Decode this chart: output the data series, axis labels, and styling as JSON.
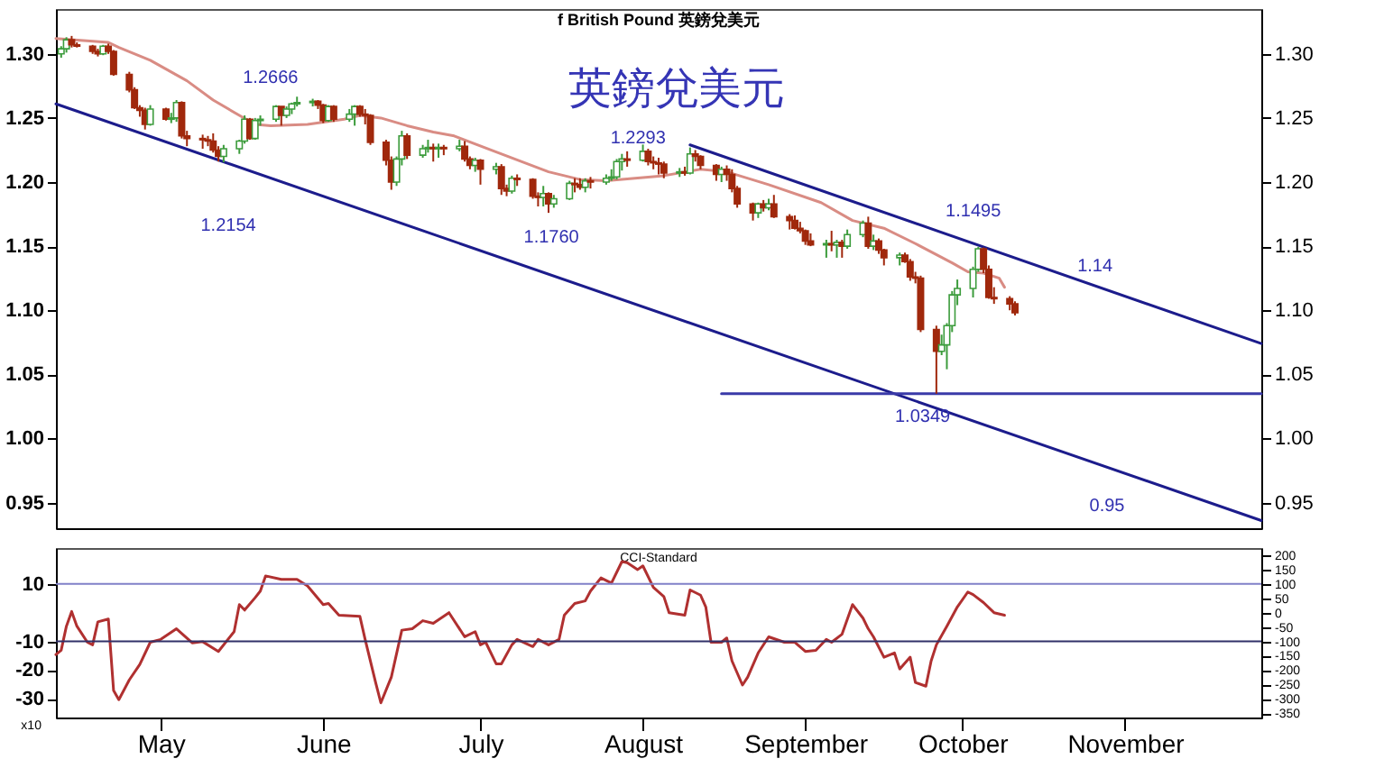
{
  "chart_data": [
    {
      "type": "candlestick",
      "title": "f British Pound 英鎊兌美元",
      "subtitle": "英鎊兌美元",
      "x": [
        "--04-12",
        "--04-13",
        "--04-14",
        "--04-15",
        "--04-18",
        "--04-19",
        "--04-20",
        "--04-21",
        "--04-22",
        "--04-25",
        "--04-26",
        "--04-27",
        "--04-28",
        "--04-29",
        "--05-02",
        "--05-03",
        "--05-04",
        "--05-05",
        "--05-06",
        "--05-09",
        "--05-10",
        "--05-11",
        "--05-12",
        "--05-13",
        "--05-16",
        "--05-17",
        "--05-18",
        "--05-19",
        "--05-20",
        "--05-23",
        "--05-24",
        "--05-25",
        "--05-26",
        "--05-27",
        "--05-30",
        "--05-31",
        "--06-01",
        "--06-02",
        "--06-03",
        "--06-06",
        "--06-07",
        "--06-08",
        "--06-09",
        "--06-10",
        "--06-13",
        "--06-14",
        "--06-15",
        "--06-16",
        "--06-17",
        "--06-20",
        "--06-21",
        "--06-22",
        "--06-23",
        "--06-24",
        "--06-27",
        "--06-28",
        "--06-29",
        "--06-30",
        "--07-01",
        "--07-04",
        "--07-05",
        "--07-06",
        "--07-07",
        "--07-08",
        "--07-11",
        "--07-12",
        "--07-13",
        "--07-14",
        "--07-15",
        "--07-18",
        "--07-19",
        "--07-20",
        "--07-21",
        "--07-22",
        "--07-25",
        "--07-26",
        "--07-27",
        "--07-28",
        "--07-29",
        "--08-01",
        "--08-02",
        "--08-03",
        "--08-04",
        "--08-05",
        "--08-08",
        "--08-09",
        "--08-10",
        "--08-11",
        "--08-12",
        "--08-15",
        "--08-16",
        "--08-17",
        "--08-18",
        "--08-19",
        "--08-22",
        "--08-23",
        "--08-24",
        "--08-25",
        "--08-26",
        "--08-29",
        "--08-30",
        "--08-31",
        "--09-01",
        "--09-02",
        "--09-05",
        "--09-06",
        "--09-07",
        "--09-08",
        "--09-09",
        "--09-12",
        "--09-13",
        "--09-14",
        "--09-15",
        "--09-16",
        "--09-19",
        "--09-20",
        "--09-21",
        "--09-22",
        "--09-23",
        "--09-26",
        "--09-27",
        "--09-28",
        "--09-29",
        "--09-30",
        "--10-03",
        "--10-04",
        "--10-05",
        "--10-06",
        "--10-07",
        "--10-10",
        "--10-11"
      ],
      "ohlc": [
        [
          1.3,
          1.306,
          1.297,
          1.304
        ],
        [
          1.304,
          1.313,
          1.301,
          1.311
        ],
        [
          1.311,
          1.314,
          1.305,
          1.307
        ],
        [
          1.307,
          1.309,
          1.305,
          1.306
        ],
        [
          1.306,
          1.307,
          1.3,
          1.302
        ],
        [
          1.302,
          1.304,
          1.298,
          1.3
        ],
        [
          1.3,
          1.307,
          1.299,
          1.306
        ],
        [
          1.306,
          1.308,
          1.3,
          1.302
        ],
        [
          1.302,
          1.303,
          1.283,
          1.284
        ],
        [
          1.284,
          1.286,
          1.27,
          1.272
        ],
        [
          1.272,
          1.274,
          1.257,
          1.258
        ],
        [
          1.258,
          1.26,
          1.251,
          1.256
        ],
        [
          1.256,
          1.258,
          1.241,
          1.245
        ],
        [
          1.245,
          1.26,
          1.244,
          1.257
        ],
        [
          1.257,
          1.258,
          1.248,
          1.249
        ],
        [
          1.249,
          1.254,
          1.246,
          1.25
        ],
        [
          1.25,
          1.264,
          1.247,
          1.262
        ],
        [
          1.262,
          1.263,
          1.234,
          1.236
        ],
        [
          1.236,
          1.24,
          1.228,
          1.234
        ],
        [
          1.234,
          1.237,
          1.226,
          1.233
        ],
        [
          1.233,
          1.236,
          1.228,
          1.232
        ],
        [
          1.232,
          1.238,
          1.223,
          1.225
        ],
        [
          1.225,
          1.228,
          1.216,
          1.22
        ],
        [
          1.22,
          1.229,
          1.2154,
          1.226
        ],
        [
          1.226,
          1.233,
          1.222,
          1.232
        ],
        [
          1.232,
          1.252,
          1.23,
          1.249
        ],
        [
          1.249,
          1.25,
          1.233,
          1.234
        ],
        [
          1.234,
          1.25,
          1.233,
          1.248
        ],
        [
          1.248,
          1.252,
          1.244,
          1.249
        ],
        [
          1.249,
          1.26,
          1.247,
          1.259
        ],
        [
          1.259,
          1.259,
          1.244,
          1.252
        ],
        [
          1.252,
          1.259,
          1.25,
          1.257
        ],
        [
          1.257,
          1.262,
          1.253,
          1.261
        ],
        [
          1.261,
          1.2666,
          1.259,
          1.262
        ],
        [
          1.262,
          1.265,
          1.259,
          1.263
        ],
        [
          1.263,
          1.264,
          1.257,
          1.26
        ],
        [
          1.26,
          1.261,
          1.246,
          1.248
        ],
        [
          1.248,
          1.26,
          1.247,
          1.259
        ],
        [
          1.259,
          1.26,
          1.247,
          1.249
        ],
        [
          1.249,
          1.257,
          1.247,
          1.253
        ],
        [
          1.253,
          1.26,
          1.244,
          1.259
        ],
        [
          1.259,
          1.26,
          1.251,
          1.253
        ],
        [
          1.253,
          1.257,
          1.245,
          1.252
        ],
        [
          1.252,
          1.253,
          1.229,
          1.231
        ],
        [
          1.231,
          1.233,
          1.213,
          1.217
        ],
        [
          1.217,
          1.22,
          1.194,
          1.2
        ],
        [
          1.2,
          1.22,
          1.197,
          1.218
        ],
        [
          1.218,
          1.24,
          1.213,
          1.236
        ],
        [
          1.236,
          1.238,
          1.218,
          1.221
        ],
        [
          1.221,
          1.229,
          1.219,
          1.226
        ],
        [
          1.226,
          1.233,
          1.223,
          1.227
        ],
        [
          1.227,
          1.23,
          1.216,
          1.226
        ],
        [
          1.226,
          1.23,
          1.219,
          1.227
        ],
        [
          1.227,
          1.229,
          1.221,
          1.226
        ],
        [
          1.226,
          1.233,
          1.224,
          1.228
        ],
        [
          1.228,
          1.232,
          1.216,
          1.218
        ],
        [
          1.218,
          1.22,
          1.21,
          1.213
        ],
        [
          1.213,
          1.219,
          1.208,
          1.217
        ],
        [
          1.217,
          1.218,
          1.198,
          1.21
        ],
        [
          1.21,
          1.215,
          1.206,
          1.212
        ],
        [
          1.212,
          1.214,
          1.19,
          1.195
        ],
        [
          1.195,
          1.198,
          1.189,
          1.193
        ],
        [
          1.193,
          1.205,
          1.191,
          1.203
        ],
        [
          1.203,
          1.206,
          1.197,
          1.202
        ],
        [
          1.202,
          1.203,
          1.187,
          1.189
        ],
        [
          1.189,
          1.192,
          1.181,
          1.188
        ],
        [
          1.188,
          1.197,
          1.181,
          1.191
        ],
        [
          1.191,
          1.192,
          1.176,
          1.183
        ],
        [
          1.183,
          1.19,
          1.18,
          1.187
        ],
        [
          1.187,
          1.201,
          1.186,
          1.199
        ],
        [
          1.199,
          1.203,
          1.192,
          1.198
        ],
        [
          1.198,
          1.203,
          1.194,
          1.196
        ],
        [
          1.196,
          1.203,
          1.192,
          1.201
        ],
        [
          1.201,
          1.204,
          1.195,
          1.2
        ],
        [
          1.2,
          1.206,
          1.198,
          1.203
        ],
        [
          1.203,
          1.21,
          1.201,
          1.204
        ],
        [
          1.204,
          1.218,
          1.202,
          1.216
        ],
        [
          1.216,
          1.222,
          1.209,
          1.218
        ],
        [
          1.218,
          1.224,
          1.212,
          1.217
        ],
        [
          1.217,
          1.2293,
          1.216,
          1.224
        ],
        [
          1.224,
          1.226,
          1.213,
          1.216
        ],
        [
          1.216,
          1.22,
          1.21,
          1.215
        ],
        [
          1.215,
          1.219,
          1.206,
          1.214
        ],
        [
          1.214,
          1.216,
          1.203,
          1.207
        ],
        [
          1.207,
          1.211,
          1.204,
          1.208
        ],
        [
          1.208,
          1.212,
          1.205,
          1.207
        ],
        [
          1.207,
          1.227,
          1.206,
          1.222
        ],
        [
          1.222,
          1.225,
          1.216,
          1.22
        ],
        [
          1.22,
          1.221,
          1.21,
          1.213
        ],
        [
          1.213,
          1.214,
          1.201,
          1.206
        ],
        [
          1.206,
          1.212,
          1.2,
          1.21
        ],
        [
          1.21,
          1.213,
          1.201,
          1.206
        ],
        [
          1.206,
          1.21,
          1.192,
          1.195
        ],
        [
          1.195,
          1.197,
          1.18,
          1.183
        ],
        [
          1.183,
          1.184,
          1.17,
          1.176
        ],
        [
          1.176,
          1.184,
          1.172,
          1.183
        ],
        [
          1.183,
          1.186,
          1.177,
          1.18
        ],
        [
          1.18,
          1.187,
          1.178,
          1.183
        ],
        [
          1.183,
          1.19,
          1.172,
          1.173
        ],
        [
          1.173,
          1.175,
          1.163,
          1.17
        ],
        [
          1.17,
          1.174,
          1.163,
          1.164
        ],
        [
          1.164,
          1.169,
          1.16,
          1.162
        ],
        [
          1.162,
          1.163,
          1.151,
          1.154
        ],
        [
          1.154,
          1.16,
          1.15,
          1.151
        ],
        [
          1.151,
          1.155,
          1.141,
          1.152
        ],
        [
          1.152,
          1.162,
          1.146,
          1.151
        ],
        [
          1.151,
          1.155,
          1.141,
          1.153
        ],
        [
          1.153,
          1.155,
          1.141,
          1.15
        ],
        [
          1.15,
          1.163,
          1.148,
          1.159
        ],
        [
          1.159,
          1.17,
          1.157,
          1.168
        ],
        [
          1.168,
          1.173,
          1.148,
          1.15
        ],
        [
          1.15,
          1.159,
          1.147,
          1.154
        ],
        [
          1.154,
          1.156,
          1.144,
          1.147
        ],
        [
          1.147,
          1.148,
          1.135,
          1.141
        ],
        [
          1.141,
          1.145,
          1.135,
          1.143
        ],
        [
          1.143,
          1.145,
          1.137,
          1.138
        ],
        [
          1.138,
          1.14,
          1.123,
          1.126
        ],
        [
          1.126,
          1.13,
          1.121,
          1.125
        ],
        [
          1.125,
          1.127,
          1.083,
          1.085
        ],
        [
          1.085,
          1.088,
          1.0349,
          1.068
        ],
        [
          1.068,
          1.081,
          1.065,
          1.073
        ],
        [
          1.073,
          1.09,
          1.054,
          1.088
        ],
        [
          1.088,
          1.115,
          1.083,
          1.112
        ],
        [
          1.112,
          1.124,
          1.104,
          1.117
        ],
        [
          1.117,
          1.134,
          1.11,
          1.132
        ],
        [
          1.132,
          1.1495,
          1.13,
          1.148
        ],
        [
          1.148,
          1.149,
          1.129,
          1.132
        ],
        [
          1.132,
          1.135,
          1.109,
          1.11
        ],
        [
          1.11,
          1.118,
          1.105,
          1.109
        ],
        [
          1.109,
          1.111,
          1.1,
          1.105
        ],
        [
          1.105,
          1.107,
          1.096,
          1.098
        ]
      ],
      "colors": [
        "#3c9c3c",
        "#3c9c3c",
        "#a0280c",
        "#a0280c",
        "#a0280c",
        "#a0280c",
        "#3c9c3c",
        "#a0280c",
        "#a0280c",
        "#a0280c",
        "#a0280c",
        "#a0280c",
        "#a0280c",
        "#3c9c3c",
        "#a0280c",
        "#3c9c3c",
        "#3c9c3c",
        "#a0280c",
        "#a0280c",
        "#a0280c",
        "#a0280c",
        "#a0280c",
        "#a0280c",
        "#3c9c3c",
        "#3c9c3c",
        "#3c9c3c",
        "#a0280c",
        "#3c9c3c",
        "#3c9c3c",
        "#3c9c3c",
        "#a0280c",
        "#3c9c3c",
        "#3c9c3c",
        "#3c9c3c",
        "#3c9c3c",
        "#a0280c",
        "#a0280c",
        "#3c9c3c",
        "#a0280c",
        "#3c9c3c",
        "#3c9c3c",
        "#a0280c",
        "#a0280c",
        "#a0280c",
        "#a0280c",
        "#a0280c",
        "#3c9c3c",
        "#3c9c3c",
        "#a0280c",
        "#3c9c3c",
        "#3c9c3c",
        "#a0280c",
        "#3c9c3c",
        "#a0280c",
        "#3c9c3c",
        "#a0280c",
        "#a0280c",
        "#3c9c3c",
        "#a0280c",
        "#3c9c3c",
        "#a0280c",
        "#a0280c",
        "#3c9c3c",
        "#a0280c",
        "#a0280c",
        "#a0280c",
        "#3c9c3c",
        "#a0280c",
        "#3c9c3c",
        "#3c9c3c",
        "#a0280c",
        "#a0280c",
        "#3c9c3c",
        "#a0280c",
        "#3c9c3c",
        "#3c9c3c",
        "#3c9c3c",
        "#3c9c3c",
        "#a0280c",
        "#3c9c3c",
        "#a0280c",
        "#a0280c",
        "#a0280c",
        "#a0280c",
        "#3c9c3c",
        "#a0280c",
        "#3c9c3c",
        "#a0280c",
        "#a0280c",
        "#a0280c",
        "#3c9c3c",
        "#a0280c",
        "#a0280c",
        "#a0280c",
        "#a0280c",
        "#3c9c3c",
        "#a0280c",
        "#3c9c3c",
        "#a0280c",
        "#a0280c",
        "#a0280c",
        "#a0280c",
        "#a0280c",
        "#a0280c",
        "#3c9c3c",
        "#a0280c",
        "#3c9c3c",
        "#a0280c",
        "#3c9c3c",
        "#3c9c3c",
        "#a0280c",
        "#3c9c3c",
        "#a0280c",
        "#a0280c",
        "#3c9c3c",
        "#a0280c",
        "#a0280c",
        "#a0280c",
        "#a0280c",
        "#a0280c",
        "#3c9c3c",
        "#3c9c3c",
        "#3c9c3c",
        "#3c9c3c",
        "#3c9c3c",
        "#3c9c3c",
        "#a0280c",
        "#a0280c",
        "#a0280c",
        "#a0280c",
        "#a0280c"
      ],
      "series": [
        {
          "type": "line",
          "color": "#d98c84",
          "x": [
            "--04-11",
            "--04-21",
            "--04-23",
            "--04-29",
            "--05-06",
            "--05-11",
            "--05-16",
            "--05-19",
            "--05-22",
            "--05-29",
            "--06-05",
            "--06-08",
            "--06-12",
            "--06-17",
            "--06-22",
            "--06-26",
            "--07-03",
            "--07-14",
            "--07-20",
            "--07-25",
            "--08-05",
            "--08-12",
            "--08-17",
            "--08-25",
            "--09-04",
            "--09-10",
            "--09-16",
            "--09-22",
            "--09-29",
            "--10-02",
            "--10-05",
            "--10-08",
            "--10-09"
          ],
          "values": [
            1.312,
            1.309,
            1.305,
            1.295,
            1.279,
            1.264,
            1.252,
            1.245,
            1.244,
            1.245,
            1.249,
            1.252,
            1.25,
            1.244,
            1.239,
            1.236,
            1.225,
            1.208,
            1.202,
            1.201,
            1.205,
            1.21,
            1.208,
            1.198,
            1.184,
            1.17,
            1.164,
            1.152,
            1.137,
            1.13,
            1.129,
            1.125,
            1.118
          ]
        },
        {
          "type": "line",
          "color": "#1c1c8c",
          "x": [
            "--04-11",
            "--11-27"
          ],
          "values": [
            1.261,
            0.936
          ]
        },
        {
          "type": "line",
          "color": "#1c1c8c",
          "x": [
            "--08-10",
            "--11-27"
          ],
          "values": [
            1.229,
            1.074
          ]
        },
        {
          "type": "line",
          "color": "#3a3aa8",
          "x": [
            "--08-16",
            "--11-27"
          ],
          "values": [
            1.035,
            1.035
          ]
        }
      ],
      "xlim": [
        "--04-11",
        "--11-27"
      ],
      "ylim": [
        0.93,
        1.335
      ],
      "yticks": [
        0.95,
        {
          "value": 1.0,
          "label": "1.00"
        },
        1.05,
        {
          "value": 1.1,
          "label": "1.10"
        },
        1.15,
        {
          "value": 1.2,
          "label": "1.20"
        },
        1.25,
        {
          "value": 1.3,
          "label": "1.30"
        }
      ],
      "y2lim": [
        0.93,
        1.335
      ],
      "y2ticks": [
        0.95,
        {
          "value": 1.0,
          "label": "1.00"
        },
        1.05,
        {
          "value": 1.1,
          "label": "1.10"
        },
        1.15,
        {
          "value": 1.2,
          "label": "1.20"
        },
        1.25,
        {
          "value": 1.3,
          "label": "1.30"
        }
      ],
      "tick_labels": "y",
      "annotations": [
        "1.2666",
        "1.2154",
        "1.1760",
        "1.2293",
        "1.1495",
        "1.14",
        "1.0349",
        "0.95"
      ]
    },
    {
      "type": "line",
      "annotations": [
        "CCI-Standard",
        "x10"
      ],
      "x": [
        "--04-11",
        "--04-12",
        "--04-13",
        "--04-14",
        "--04-15",
        "--04-17",
        "--04-18",
        "--04-19",
        "--04-21",
        "--04-22",
        "--04-23",
        "--04-25",
        "--04-27",
        "--04-29",
        "--05-01",
        "--05-04",
        "--05-07",
        "--05-09",
        "--05-12",
        "--05-15",
        "--05-16",
        "--05-17",
        "--05-19",
        "--05-20",
        "--05-21",
        "--05-24",
        "--05-27",
        "--05-29",
        "--06-01",
        "--06-02",
        "--06-04",
        "--06-08",
        "--06-09",
        "--06-11",
        "--06-12",
        "--06-14",
        "--06-16",
        "--06-18",
        "--06-20",
        "--06-22",
        "--06-25",
        "--06-28",
        "--06-30",
        "--07-01",
        "--07-02",
        "--07-04",
        "--07-05",
        "--07-07",
        "--07-08",
        "--07-11",
        "--07-12",
        "--07-14",
        "--07-16",
        "--07-17",
        "--07-19",
        "--07-21",
        "--07-22",
        "--07-24",
        "--07-26",
        "--07-28",
        "--07-29",
        "--07-31",
        "--08-01",
        "--08-03",
        "--08-05",
        "--08-06",
        "--08-09",
        "--08-10",
        "--08-12",
        "--08-13",
        "--08-14",
        "--08-16",
        "--08-17",
        "--08-18",
        "--08-20",
        "--08-21",
        "--08-23",
        "--08-25",
        "--08-28",
        "--08-30",
        "--09-01",
        "--09-03",
        "--09-05",
        "--09-06",
        "--09-08",
        "--09-10",
        "--09-12",
        "--09-13",
        "--09-14",
        "--09-16",
        "--09-18",
        "--09-19",
        "--09-21",
        "--09-22",
        "--09-24",
        "--09-25",
        "--09-26",
        "--09-28",
        "--09-30",
        "--10-02",
        "--10-03",
        "--10-05",
        "--10-07",
        "--10-09"
      ],
      "series": [
        {
          "color": "#b03030",
          "axis": "y2",
          "values": [
            -146,
            -131,
            -47,
            4,
            -47,
            -103,
            -112,
            -32,
            -22,
            -271,
            -303,
            -234,
            -180,
            -103,
            -93,
            -56,
            -105,
            -101,
            -135,
            -66,
            28,
            9,
            52,
            75,
            128,
            116,
            116,
            93,
            28,
            32,
            -9,
            -13,
            -93,
            -243,
            -314,
            -224,
            -61,
            -56,
            -28,
            -37,
            0,
            -84,
            -66,
            -112,
            -103,
            -178,
            -178,
            -112,
            -93,
            -118,
            -93,
            -112,
            -93,
            -9,
            32,
            41,
            75,
            121,
            103,
            178,
            174,
            150,
            163,
            88,
            56,
            0,
            -9,
            79,
            61,
            20,
            -103,
            -103,
            -88,
            -168,
            -252,
            -224,
            -140,
            -84,
            -103,
            -103,
            -135,
            -131,
            -93,
            -103,
            -75,
            28,
            -19,
            -56,
            -84,
            -155,
            -140,
            -196,
            -155,
            -243,
            -256,
            -168,
            -112,
            -47,
            20,
            72,
            63,
            35,
            0,
            -9
          ]
        }
      ],
      "xlim": [
        "--04-11",
        "--11-27"
      ],
      "xticks": [
        {
          "value": "--05-01",
          "label": "May"
        },
        {
          "value": "--06-01",
          "label": "June"
        },
        {
          "value": "--07-01",
          "label": "July"
        },
        {
          "value": "--08-01",
          "label": "August"
        },
        {
          "value": "--09-01",
          "label": "September"
        },
        {
          "value": "--10-01",
          "label": "October"
        },
        {
          "value": "--11-01",
          "label": "November"
        }
      ],
      "ylim": [
        -36.5,
        22.5
      ],
      "yticks": [
        10,
        -10,
        -20,
        -30
      ],
      "y2lim": [
        -365,
        225
      ],
      "y2ticks": [
        200,
        150,
        100,
        50,
        0,
        -50,
        -100,
        -150,
        -200,
        -250,
        -300,
        -350
      ],
      "ref_lines": [
        {
          "axis": "y2",
          "value": 100,
          "color": "#8080c8"
        },
        {
          "axis": "y2",
          "value": -100,
          "color": "#303068"
        }
      ]
    }
  ]
}
